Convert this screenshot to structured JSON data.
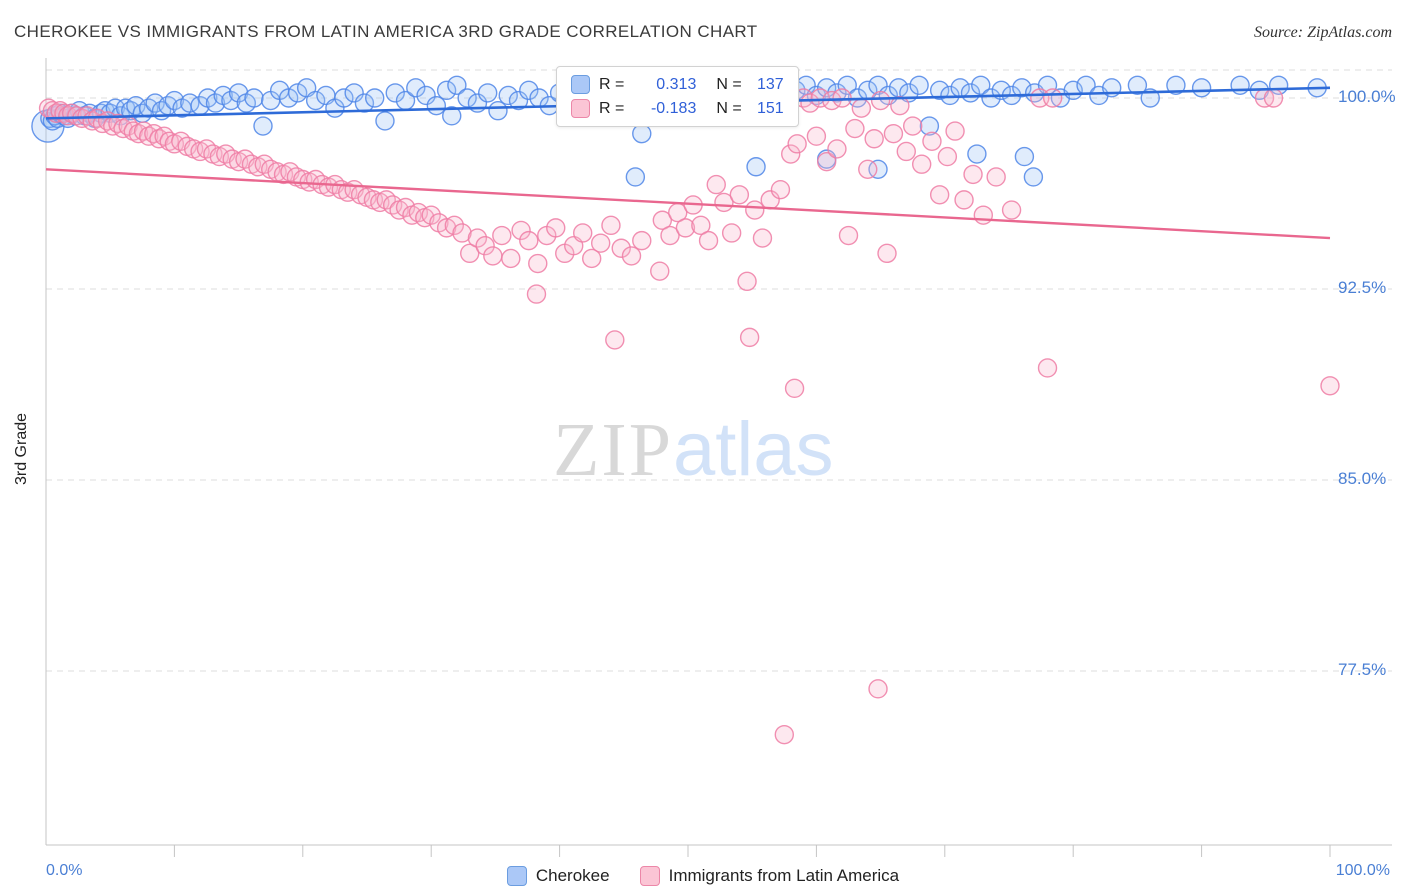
{
  "header": {
    "title": "CHEROKEE VS IMMIGRANTS FROM LATIN AMERICA 3RD GRADE CORRELATION CHART",
    "source": "Source: ZipAtlas.com"
  },
  "watermark": {
    "zip": "ZIP",
    "atlas": "atlas"
  },
  "axes": {
    "y_label": "3rd Grade",
    "x_min_label": "0.0%",
    "x_max_label": "100.0%",
    "y_tick_labels": [
      "100.0%",
      "92.5%",
      "85.0%",
      "77.5%"
    ]
  },
  "stats_box": {
    "rows": [
      {
        "r_label": "R =",
        "r_value": "0.313",
        "n_label": "N =",
        "n_value": "137"
      },
      {
        "r_label": "R =",
        "r_value": "-0.183",
        "n_label": "N =",
        "n_value": "151"
      }
    ]
  },
  "legend": {
    "items": [
      {
        "label": "Cherokee",
        "color": "#abc8f7"
      },
      {
        "label": "Immigrants from Latin America",
        "color": "#fbc5d5"
      }
    ]
  },
  "colors": {
    "blue_stroke": "#4f86e8",
    "blue_fill": "#9ec3f5",
    "pink_stroke": "#ee7da4",
    "pink_fill": "#f9b8cc",
    "blue_trend": "#2e6bd8",
    "pink_trend": "#e9678f",
    "tick_label": "#4a7fd4"
  },
  "chart_data": {
    "type": "scatter",
    "title": "CHEROKEE VS IMMIGRANTS FROM LATIN AMERICA 3RD GRADE CORRELATION CHART",
    "xlabel": "",
    "ylabel": "3rd Grade",
    "x_range": [
      0,
      100
    ],
    "y_range": [
      70.5,
      101.2
    ],
    "y_ticks": [
      100,
      92.5,
      85,
      77.5
    ],
    "grid": true,
    "legend_position": "bottom",
    "series": [
      {
        "name": "Cherokee",
        "r": 0.313,
        "n": 137,
        "trend": {
          "x": [
            0,
            100
          ],
          "y": [
            99.2,
            100.4
          ]
        },
        "points": [
          [
            0.15,
            98.9,
            16
          ],
          [
            0.3,
            99.2
          ],
          [
            0.5,
            99.1
          ],
          [
            0.7,
            99.3
          ],
          [
            0.9,
            99.2
          ],
          [
            1.1,
            99.4
          ],
          [
            1.4,
            99.3
          ],
          [
            1.7,
            99.2
          ],
          [
            2.0,
            99.4
          ],
          [
            2.3,
            99.3
          ],
          [
            2.6,
            99.5
          ],
          [
            3.0,
            99.3
          ],
          [
            3.4,
            99.4
          ],
          [
            3.8,
            99.2
          ],
          [
            4.3,
            99.4
          ],
          [
            4.6,
            99.5
          ],
          [
            5.0,
            99.4
          ],
          [
            5.4,
            99.6
          ],
          [
            5.8,
            99.3
          ],
          [
            6.2,
            99.6
          ],
          [
            6.6,
            99.5
          ],
          [
            7.0,
            99.7
          ],
          [
            7.5,
            99.4
          ],
          [
            8.0,
            99.6
          ],
          [
            8.5,
            99.8
          ],
          [
            9.0,
            99.5
          ],
          [
            9.5,
            99.7
          ],
          [
            10.0,
            99.9
          ],
          [
            10.6,
            99.6
          ],
          [
            11.2,
            99.8
          ],
          [
            12.0,
            99.7
          ],
          [
            12.6,
            100.0
          ],
          [
            13.2,
            99.8
          ],
          [
            13.8,
            100.1
          ],
          [
            14.4,
            99.9
          ],
          [
            15.0,
            100.2
          ],
          [
            15.6,
            99.8
          ],
          [
            16.2,
            100.0
          ],
          [
            16.9,
            98.9
          ],
          [
            17.5,
            99.9
          ],
          [
            18.2,
            100.3
          ],
          [
            18.9,
            100.0
          ],
          [
            19.6,
            100.2
          ],
          [
            20.3,
            100.4
          ],
          [
            21.0,
            99.9
          ],
          [
            21.8,
            100.1
          ],
          [
            22.5,
            99.6
          ],
          [
            23.2,
            100.0
          ],
          [
            24.0,
            100.2
          ],
          [
            24.8,
            99.8
          ],
          [
            25.6,
            100.0
          ],
          [
            26.4,
            99.1
          ],
          [
            27.2,
            100.2
          ],
          [
            28.0,
            99.9
          ],
          [
            28.8,
            100.4
          ],
          [
            29.6,
            100.1
          ],
          [
            30.4,
            99.7
          ],
          [
            31.2,
            100.3
          ],
          [
            32.0,
            100.5
          ],
          [
            32.8,
            100.0
          ],
          [
            33.6,
            99.8
          ],
          [
            34.4,
            100.2
          ],
          [
            35.2,
            99.5
          ],
          [
            36.0,
            100.1
          ],
          [
            36.8,
            99.9
          ],
          [
            37.6,
            100.3
          ],
          [
            38.4,
            100.0
          ],
          [
            39.2,
            99.7
          ],
          [
            40.0,
            100.2
          ],
          [
            31.6,
            99.3
          ],
          [
            40.8,
            100.0
          ],
          [
            41.6,
            100.4
          ],
          [
            42.4,
            99.8
          ],
          [
            43.2,
            100.2
          ],
          [
            44.0,
            99.5
          ],
          [
            44.8,
            100.1
          ],
          [
            45.6,
            99.9
          ],
          [
            46.4,
            98.6
          ],
          [
            47.2,
            100.3
          ],
          [
            48.0,
            99.7
          ],
          [
            48.8,
            100.0
          ],
          [
            49.6,
            100.4
          ],
          [
            50.4,
            99.9
          ],
          [
            51.2,
            100.2
          ],
          [
            52.0,
            99.6
          ],
          [
            52.8,
            100.0
          ],
          [
            53.6,
            100.3
          ],
          [
            54.4,
            99.8
          ],
          [
            55.2,
            100.1
          ],
          [
            56.0,
            100.2
          ],
          [
            56.8,
            100.5
          ],
          [
            57.6,
            100.0
          ],
          [
            58.4,
            100.3
          ],
          [
            59.2,
            100.5
          ],
          [
            60.0,
            100.1
          ],
          [
            60.8,
            100.4
          ],
          [
            61.6,
            100.2
          ],
          [
            62.4,
            100.5
          ],
          [
            63.2,
            100.0
          ],
          [
            64.0,
            100.3
          ],
          [
            64.8,
            100.5
          ],
          [
            65.6,
            100.1
          ],
          [
            66.4,
            100.4
          ],
          [
            67.2,
            100.2
          ],
          [
            68.0,
            100.5
          ],
          [
            68.8,
            98.9
          ],
          [
            69.6,
            100.3
          ],
          [
            70.4,
            100.1
          ],
          [
            71.2,
            100.4
          ],
          [
            72.0,
            100.2
          ],
          [
            72.8,
            100.5
          ],
          [
            73.6,
            100.0
          ],
          [
            74.4,
            100.3
          ],
          [
            75.2,
            100.1
          ],
          [
            76.2,
            97.7
          ],
          [
            76.0,
            100.4
          ],
          [
            77.0,
            100.2
          ],
          [
            78.0,
            100.5
          ],
          [
            79.0,
            100.0
          ],
          [
            80.0,
            100.3
          ],
          [
            81.0,
            100.5
          ],
          [
            82.0,
            100.1
          ],
          [
            83.0,
            100.4
          ],
          [
            85.0,
            100.5
          ],
          [
            86.0,
            100.0
          ],
          [
            88.0,
            100.5
          ],
          [
            90.0,
            100.4
          ],
          [
            93.0,
            100.5
          ],
          [
            94.5,
            100.3
          ],
          [
            96.0,
            100.5
          ],
          [
            99.0,
            100.4
          ],
          [
            45.9,
            96.9
          ],
          [
            55.3,
            97.3
          ],
          [
            60.8,
            97.6
          ],
          [
            64.8,
            97.2
          ],
          [
            76.9,
            96.9
          ],
          [
            72.5,
            97.8
          ]
        ]
      },
      {
        "name": "Immigrants from Latin America",
        "r": -0.183,
        "n": 151,
        "trend": {
          "x": [
            0,
            100
          ],
          "y": [
            97.2,
            94.5
          ]
        },
        "points": [
          [
            0.2,
            99.6
          ],
          [
            0.5,
            99.5
          ],
          [
            0.8,
            99.4
          ],
          [
            1.1,
            99.5
          ],
          [
            1.4,
            99.4
          ],
          [
            1.7,
            99.3
          ],
          [
            2.0,
            99.4
          ],
          [
            2.4,
            99.3
          ],
          [
            2.8,
            99.2
          ],
          [
            3.2,
            99.3
          ],
          [
            3.6,
            99.1
          ],
          [
            4.0,
            99.2
          ],
          [
            4.4,
            99.0
          ],
          [
            4.8,
            99.1
          ],
          [
            5.2,
            98.9
          ],
          [
            5.6,
            99.0
          ],
          [
            6.0,
            98.8
          ],
          [
            6.4,
            98.9
          ],
          [
            6.8,
            98.7
          ],
          [
            7.2,
            98.6
          ],
          [
            7.6,
            98.7
          ],
          [
            8.0,
            98.5
          ],
          [
            8.4,
            98.6
          ],
          [
            8.8,
            98.4
          ],
          [
            9.2,
            98.5
          ],
          [
            9.6,
            98.3
          ],
          [
            10.0,
            98.2
          ],
          [
            10.5,
            98.3
          ],
          [
            11.0,
            98.1
          ],
          [
            11.5,
            98.0
          ],
          [
            12.0,
            97.9
          ],
          [
            12.5,
            98.0
          ],
          [
            13.0,
            97.8
          ],
          [
            13.5,
            97.7
          ],
          [
            14.0,
            97.8
          ],
          [
            14.5,
            97.6
          ],
          [
            15.0,
            97.5
          ],
          [
            15.5,
            97.6
          ],
          [
            16.0,
            97.4
          ],
          [
            16.5,
            97.3
          ],
          [
            17.0,
            97.4
          ],
          [
            17.5,
            97.2
          ],
          [
            18.0,
            97.1
          ],
          [
            18.5,
            97.0
          ],
          [
            19.0,
            97.1
          ],
          [
            19.5,
            96.9
          ],
          [
            20.0,
            96.8
          ],
          [
            20.5,
            96.7
          ],
          [
            21.0,
            96.8
          ],
          [
            21.5,
            96.6
          ],
          [
            22.0,
            96.5
          ],
          [
            22.5,
            96.6
          ],
          [
            23.0,
            96.4
          ],
          [
            23.5,
            96.3
          ],
          [
            24.0,
            96.4
          ],
          [
            24.5,
            96.2
          ],
          [
            25.0,
            96.1
          ],
          [
            25.5,
            96.0
          ],
          [
            26.0,
            95.9
          ],
          [
            26.5,
            96.0
          ],
          [
            27.0,
            95.8
          ],
          [
            27.5,
            95.6
          ],
          [
            28.0,
            95.7
          ],
          [
            28.5,
            95.4
          ],
          [
            29.0,
            95.5
          ],
          [
            29.5,
            95.3
          ],
          [
            30.0,
            95.4
          ],
          [
            30.6,
            95.1
          ],
          [
            31.2,
            94.9
          ],
          [
            31.8,
            95.0
          ],
          [
            32.4,
            94.7
          ],
          [
            33.0,
            93.9
          ],
          [
            33.6,
            94.5
          ],
          [
            34.2,
            94.2
          ],
          [
            34.8,
            93.8
          ],
          [
            35.5,
            94.6
          ],
          [
            36.2,
            93.7
          ],
          [
            37.0,
            94.8
          ],
          [
            37.6,
            94.4
          ],
          [
            38.3,
            93.5
          ],
          [
            39.0,
            94.6
          ],
          [
            39.7,
            94.9
          ],
          [
            40.4,
            93.9
          ],
          [
            41.1,
            94.2
          ],
          [
            41.8,
            94.7
          ],
          [
            42.5,
            93.7
          ],
          [
            43.2,
            94.3
          ],
          [
            44.0,
            95.0
          ],
          [
            44.8,
            94.1
          ],
          [
            45.6,
            93.8
          ],
          [
            46.4,
            94.4
          ],
          [
            48.0,
            95.2
          ],
          [
            48.6,
            94.6
          ],
          [
            49.2,
            95.5
          ],
          [
            49.8,
            94.9
          ],
          [
            50.4,
            95.8
          ],
          [
            51.0,
            95.0
          ],
          [
            51.6,
            94.4
          ],
          [
            52.2,
            96.6
          ],
          [
            52.8,
            95.9
          ],
          [
            53.4,
            94.7
          ],
          [
            54.0,
            96.2
          ],
          [
            54.6,
            92.8
          ],
          [
            55.2,
            95.6
          ],
          [
            55.8,
            94.5
          ],
          [
            56.4,
            96.0
          ],
          [
            57.2,
            96.4
          ],
          [
            58.0,
            97.8
          ],
          [
            58.5,
            98.2
          ],
          [
            59.0,
            100.0
          ],
          [
            59.5,
            99.8
          ],
          [
            60.0,
            98.5
          ],
          [
            60.3,
            100.0
          ],
          [
            60.8,
            97.5
          ],
          [
            61.2,
            99.9
          ],
          [
            61.6,
            98.0
          ],
          [
            62.0,
            100.0
          ],
          [
            62.5,
            94.6
          ],
          [
            63.0,
            98.8
          ],
          [
            63.5,
            99.6
          ],
          [
            64.0,
            97.2
          ],
          [
            64.5,
            98.4
          ],
          [
            65.0,
            99.9
          ],
          [
            65.5,
            93.9
          ],
          [
            66.0,
            98.6
          ],
          [
            66.5,
            99.7
          ],
          [
            67.0,
            97.9
          ],
          [
            67.5,
            98.9
          ],
          [
            68.2,
            97.4
          ],
          [
            69.0,
            98.3
          ],
          [
            69.6,
            96.2
          ],
          [
            70.2,
            97.7
          ],
          [
            70.8,
            98.7
          ],
          [
            71.5,
            96.0
          ],
          [
            72.2,
            97.0
          ],
          [
            73.0,
            95.4
          ],
          [
            74.0,
            96.9
          ],
          [
            75.2,
            95.6
          ],
          [
            38.2,
            92.3
          ],
          [
            44.3,
            90.5
          ],
          [
            47.8,
            93.2
          ],
          [
            54.8,
            90.6
          ],
          [
            58.3,
            88.6
          ],
          [
            57.5,
            75.0
          ],
          [
            64.8,
            76.8
          ],
          [
            78.0,
            89.4
          ],
          [
            100.0,
            88.7
          ],
          [
            77.4,
            100.0
          ],
          [
            78.4,
            100.0
          ],
          [
            94.9,
            100.0
          ],
          [
            95.6,
            100.0
          ]
        ]
      }
    ]
  }
}
